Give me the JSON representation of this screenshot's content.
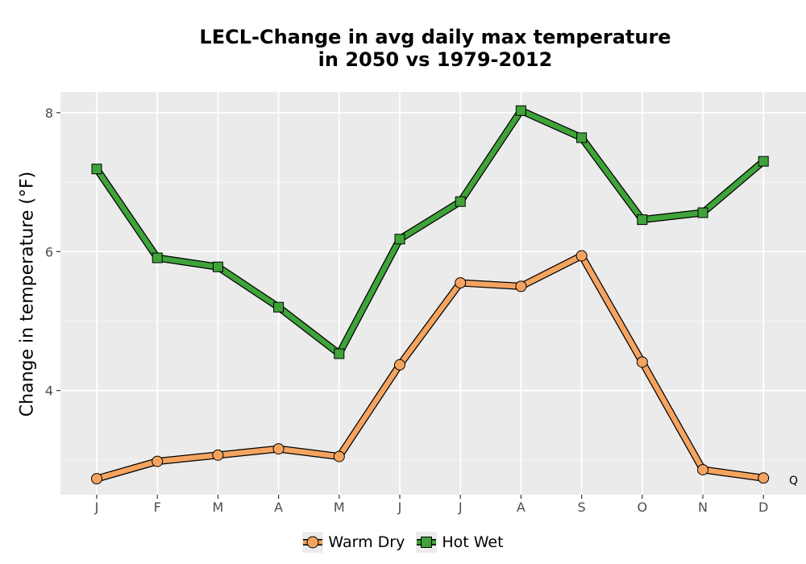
{
  "chart_data": {
    "type": "line",
    "title_line1": "LECL-Change in avg daily max temperature",
    "title_line2": "in 2050 vs 1979-2012",
    "xlabel": "",
    "ylabel": "Change in temperature (°F)",
    "categories": [
      "J",
      "F",
      "M",
      "A",
      "M",
      "J",
      "J",
      "A",
      "S",
      "O",
      "N",
      "D"
    ],
    "ylim": [
      2.5,
      8.3
    ],
    "yticks": [
      4,
      6,
      8
    ],
    "grid": true,
    "legend_position": "bottom",
    "corner_note": "Q",
    "series": [
      {
        "name": "Warm Dry",
        "marker": "circle",
        "color": "#F4A460",
        "values": [
          2.73,
          2.98,
          3.07,
          3.16,
          3.05,
          4.37,
          5.55,
          5.5,
          5.94,
          4.41,
          2.86,
          2.74
        ]
      },
      {
        "name": "Hot Wet",
        "marker": "square",
        "color": "#3FA33A",
        "values": [
          7.19,
          5.91,
          5.78,
          5.2,
          4.53,
          6.18,
          6.72,
          8.03,
          7.64,
          6.46,
          6.56,
          7.3
        ]
      }
    ]
  }
}
